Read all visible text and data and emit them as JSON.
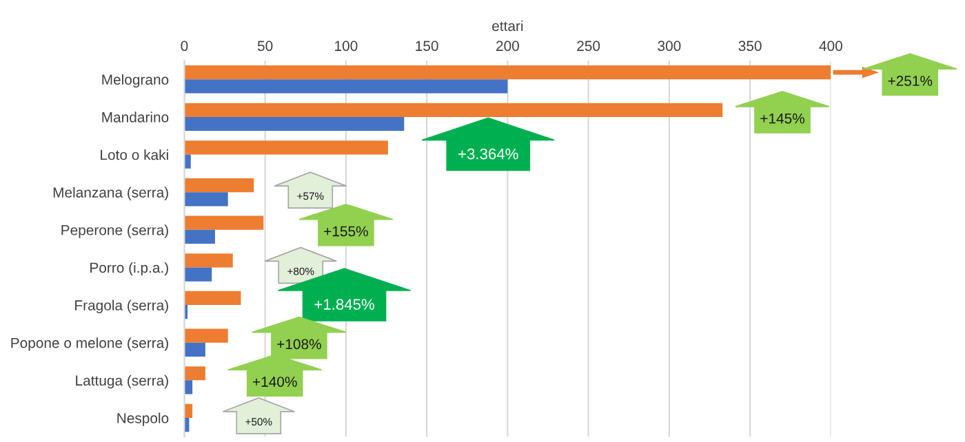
{
  "chart_data": {
    "type": "bar",
    "orientation": "horizontal",
    "xlabel": "ettari",
    "categories": [
      "Melograno",
      "Mandarino",
      "Loto o kaki",
      "Melanzana (serra)",
      "Peperone (serra)",
      "Porro (i.p.a.)",
      "Fragola (serra)",
      "Popone o melone (serra)",
      "Lattuga (serra)",
      "Nespolo"
    ],
    "series": [
      {
        "color": "#ed7d31",
        "values": [
          400,
          333,
          126,
          43,
          49,
          30,
          35,
          27,
          13,
          5
        ]
      },
      {
        "color": "#4472c4",
        "values": [
          200,
          136,
          4,
          27,
          19,
          17,
          2,
          13,
          5,
          3
        ]
      }
    ],
    "xlim": [
      0,
      400
    ],
    "xticks": [
      0,
      50,
      100,
      150,
      200,
      250,
      300,
      350,
      400
    ],
    "grid": "x",
    "legend": false,
    "annotations": [
      "+251%",
      "+145%",
      "+3.364%",
      "+57%",
      "+155%",
      "+80%",
      "+1.845%",
      "+108%",
      "+140%",
      "+50%"
    ]
  }
}
